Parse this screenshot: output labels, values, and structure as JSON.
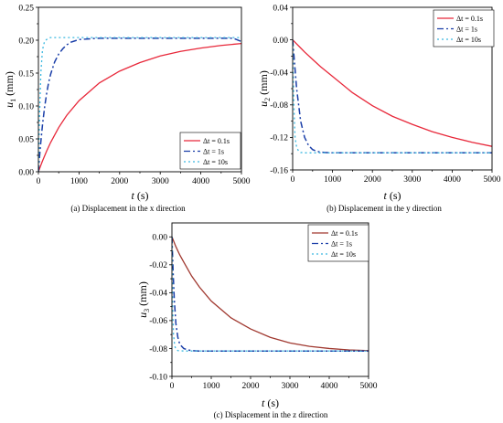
{
  "colors": {
    "red": "#e8283a",
    "darkred": "#a0382f",
    "blue": "#1a3ea8",
    "cyan": "#3ab8e0"
  },
  "chart_data": [
    {
      "type": "line",
      "caption": "(a) Displacement in the x direction",
      "ylabel_main": "u",
      "ylabel_sub": "1",
      "ylabel_unit": " (mm)",
      "xlabel_main": "t",
      "xlabel_unit": " (s)",
      "xlim": [
        0,
        5000
      ],
      "ylim": [
        0,
        0.25
      ],
      "xticks": [
        0,
        1000,
        2000,
        3000,
        4000,
        5000
      ],
      "yticks": [
        0,
        0.05,
        0.1,
        0.15,
        0.2,
        0.25
      ],
      "ytick_labels": [
        "0.00",
        "0.05",
        "0.10",
        "0.15",
        "0.20",
        "0.25"
      ],
      "legend_position": "bottom-right",
      "series": [
        {
          "name": "Δt = 0.1s",
          "color": "red",
          "style": "solid",
          "x": [
            0,
            50,
            100,
            200,
            300,
            500,
            700,
            1000,
            1500,
            2000,
            2500,
            3000,
            3500,
            4000,
            4500,
            5000
          ],
          "y": [
            0.0,
            0.0083,
            0.0163,
            0.0311,
            0.0444,
            0.0673,
            0.086,
            0.108,
            0.135,
            0.153,
            0.166,
            0.176,
            0.183,
            0.188,
            0.192,
            0.195
          ]
        },
        {
          "name": "Δt = 1s",
          "color": "blue",
          "style": "dashdot",
          "x": [
            0,
            20,
            50,
            100,
            150,
            200,
            250,
            300,
            400,
            500,
            600,
            700,
            800,
            1000,
            1500,
            2000,
            3000,
            4000,
            4800,
            5000
          ],
          "y": [
            0.0,
            0.017,
            0.039,
            0.071,
            0.097,
            0.118,
            0.135,
            0.148,
            0.167,
            0.179,
            0.187,
            0.193,
            0.197,
            0.201,
            0.203,
            0.203,
            0.203,
            0.203,
            0.203,
            0.198
          ]
        },
        {
          "name": "Δt = 10s",
          "color": "cyan",
          "style": "dotted",
          "x": [
            0,
            30,
            60,
            100,
            150,
            200,
            250,
            300,
            500,
            1000,
            2000,
            3000,
            4000,
            5000
          ],
          "y": [
            0.0,
            0.09,
            0.15,
            0.185,
            0.198,
            0.201,
            0.203,
            0.204,
            0.204,
            0.204,
            0.204,
            0.204,
            0.204,
            0.204
          ]
        }
      ]
    },
    {
      "type": "line",
      "caption": "(b) Displacement in the y direction",
      "ylabel_main": "u",
      "ylabel_sub": "2",
      "ylabel_unit": " (mm)",
      "xlabel_main": "t",
      "xlabel_unit": " (s)",
      "xlim": [
        0,
        5000
      ],
      "ylim": [
        -0.16,
        0.04
      ],
      "xticks": [
        0,
        1000,
        2000,
        3000,
        4000,
        5000
      ],
      "yticks": [
        -0.16,
        -0.12,
        -0.08,
        -0.04,
        0.0,
        0.04
      ],
      "ytick_labels": [
        "-0.16",
        "-0.12",
        "-0.08",
        "-0.04",
        "0.00",
        "0.04"
      ],
      "legend_position": "top-right",
      "series": [
        {
          "name": "Δt = 0.1s",
          "color": "red",
          "style": "solid",
          "x": [
            0,
            100,
            200,
            300,
            500,
            700,
            1000,
            1500,
            2000,
            2500,
            3000,
            3500,
            4000,
            4500,
            5000
          ],
          "y": [
            0.0,
            -0.005,
            -0.01,
            -0.015,
            -0.024,
            -0.033,
            -0.045,
            -0.065,
            -0.081,
            -0.094,
            -0.104,
            -0.113,
            -0.12,
            -0.126,
            -0.131
          ]
        },
        {
          "name": "Δt = 1s",
          "color": "blue",
          "style": "dashdot",
          "x": [
            0,
            50,
            100,
            200,
            300,
            400,
            500,
            600,
            700,
            800,
            1000,
            1500,
            2000,
            3000,
            4000,
            5000
          ],
          "y": [
            0.0,
            -0.03,
            -0.06,
            -0.1,
            -0.12,
            -0.13,
            -0.135,
            -0.137,
            -0.138,
            -0.1385,
            -0.139,
            -0.139,
            -0.139,
            -0.139,
            -0.139,
            -0.139
          ]
        },
        {
          "name": "Δt = 10s",
          "color": "cyan",
          "style": "dotted",
          "x": [
            0,
            30,
            60,
            100,
            150,
            200,
            300,
            500,
            1000,
            2000,
            3000,
            4000,
            5000
          ],
          "y": [
            0.0,
            -0.08,
            -0.12,
            -0.132,
            -0.137,
            -0.1385,
            -0.139,
            -0.139,
            -0.139,
            -0.139,
            -0.139,
            -0.139,
            -0.139
          ]
        }
      ]
    },
    {
      "type": "line",
      "caption": "(c) Displacement in the z direction",
      "ylabel_main": "u",
      "ylabel_sub": "3",
      "ylabel_unit": " (mm)",
      "xlabel_main": "t",
      "xlabel_unit": " (s)",
      "xlim": [
        0,
        5000
      ],
      "ylim": [
        -0.1,
        0.01
      ],
      "xticks": [
        0,
        1000,
        2000,
        3000,
        4000,
        5000
      ],
      "yticks": [
        -0.1,
        -0.08,
        -0.06,
        -0.04,
        -0.02,
        0.0
      ],
      "ytick_labels": [
        "-0.10",
        "-0.08",
        "-0.06",
        "-0.04",
        "-0.02",
        "0.00"
      ],
      "legend_position": "top-right",
      "series": [
        {
          "name": "Δt = 0.1s",
          "color": "darkred",
          "style": "solid",
          "x": [
            0,
            100,
            200,
            300,
            500,
            700,
            1000,
            1500,
            2000,
            2500,
            3000,
            3500,
            4000,
            4500,
            5000
          ],
          "y": [
            0.0,
            -0.007,
            -0.013,
            -0.018,
            -0.028,
            -0.036,
            -0.046,
            -0.058,
            -0.066,
            -0.072,
            -0.076,
            -0.0785,
            -0.08,
            -0.081,
            -0.0815
          ]
        },
        {
          "name": "Δt = 1s",
          "color": "blue",
          "style": "dashdot",
          "x": [
            0,
            30,
            60,
            100,
            150,
            200,
            300,
            400,
            500,
            700,
            1000,
            2000,
            3000,
            4000,
            5000
          ],
          "y": [
            0.0,
            -0.025,
            -0.045,
            -0.062,
            -0.072,
            -0.077,
            -0.08,
            -0.081,
            -0.0815,
            -0.0818,
            -0.0818,
            -0.0818,
            -0.0818,
            -0.0818,
            -0.0818
          ]
        },
        {
          "name": "Δt = 10s",
          "color": "cyan",
          "style": "dotted",
          "x": [
            0,
            20,
            40,
            70,
            100,
            150,
            300,
            1000,
            2000,
            3000,
            4000,
            5000
          ],
          "y": [
            0.0,
            -0.05,
            -0.07,
            -0.078,
            -0.0805,
            -0.0815,
            -0.0818,
            -0.0818,
            -0.0818,
            -0.0818,
            -0.0818,
            -0.0818
          ]
        }
      ]
    }
  ]
}
